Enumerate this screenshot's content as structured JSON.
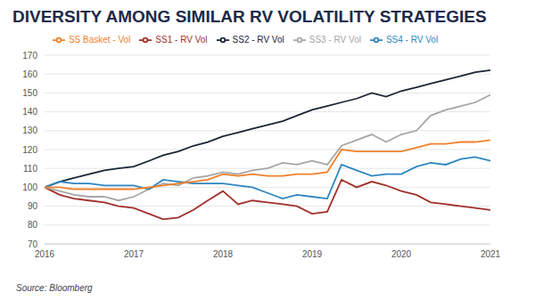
{
  "chart_data": {
    "type": "line",
    "title": "DIVERSITY AMONG SIMILAR RV VOLATILITY STRATEGIES",
    "source": "Source: Bloomberg",
    "x": [
      2016,
      2016.17,
      2016.33,
      2016.5,
      2016.67,
      2016.83,
      2017,
      2017.17,
      2017.33,
      2017.5,
      2017.67,
      2017.83,
      2018,
      2018.17,
      2018.33,
      2018.5,
      2018.67,
      2018.83,
      2019,
      2019.17,
      2019.33,
      2019.5,
      2019.67,
      2019.83,
      2020,
      2020.17,
      2020.33,
      2020.5,
      2020.67,
      2020.83,
      2021
    ],
    "xlim": [
      2016,
      2021
    ],
    "xticks": [
      2016,
      2017,
      2018,
      2019,
      2020,
      2021
    ],
    "ylim": [
      70,
      170
    ],
    "yticks": [
      70,
      80,
      90,
      100,
      110,
      120,
      130,
      140,
      150,
      160,
      170
    ],
    "grid": true,
    "legend": "top",
    "series": [
      {
        "name": "SS1 - RV Vol",
        "color": "#a0302a",
        "values": [
          100,
          96,
          94,
          93,
          92,
          90,
          89,
          86,
          83,
          84,
          88,
          93,
          98,
          91,
          93,
          92,
          91,
          90,
          86,
          87,
          104,
          100,
          103,
          101,
          98,
          96,
          92,
          91,
          90,
          89,
          88
        ]
      },
      {
        "name": "SS2 - RV Vol",
        "color": "#1b2535",
        "values": [
          100,
          103,
          105,
          107,
          109,
          110,
          111,
          114,
          117,
          119,
          122,
          124,
          127,
          129,
          131,
          133,
          135,
          138,
          141,
          143,
          145,
          147,
          150,
          148,
          151,
          153,
          155,
          157,
          159,
          161,
          162
        ]
      },
      {
        "name": "SS3 - RV Vol",
        "color": "#a6a6a6",
        "values": [
          100,
          98,
          96,
          95,
          95,
          93,
          95,
          99,
          102,
          101,
          105,
          106,
          108,
          107,
          109,
          110,
          113,
          112,
          114,
          112,
          122,
          125,
          128,
          124,
          128,
          130,
          138,
          141,
          143,
          145,
          149
        ]
      },
      {
        "name": "SS4 - RV Vol",
        "color": "#2e86c1",
        "values": [
          100,
          103,
          102,
          102,
          101,
          101,
          101,
          99,
          104,
          103,
          102,
          102,
          102,
          101,
          100,
          97,
          94,
          96,
          95,
          94,
          112,
          109,
          106,
          107,
          107,
          111,
          113,
          112,
          115,
          116,
          114
        ]
      },
      {
        "name": "SS Basket - Vol",
        "color": "#f07f2a",
        "values": [
          100,
          100,
          99,
          99,
          99,
          99,
          99,
          100,
          101,
          102,
          103,
          104,
          107,
          106,
          107,
          106,
          106,
          107,
          107,
          108,
          120,
          119,
          119,
          119,
          119,
          121,
          123,
          123,
          124,
          124,
          125
        ]
      }
    ]
  }
}
